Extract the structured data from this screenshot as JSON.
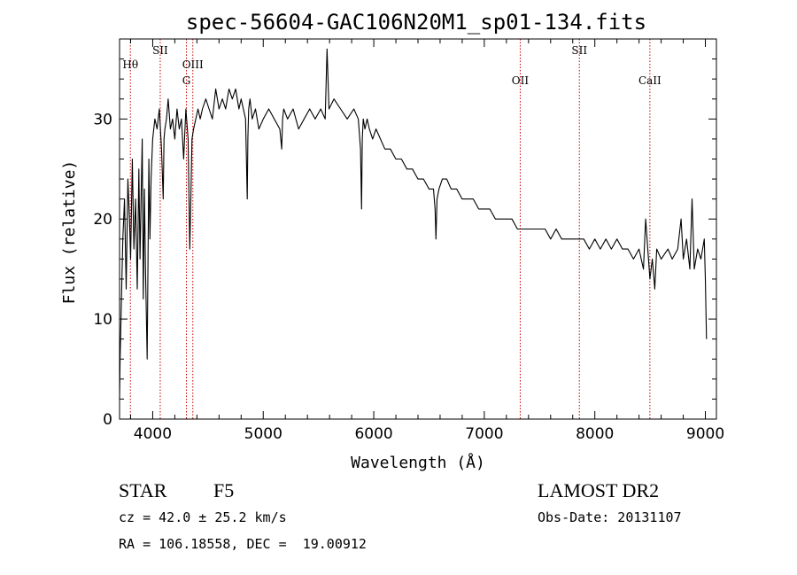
{
  "chart_data": {
    "type": "line",
    "title": "spec-56604-GAC106N20M1_sp01-134.fits",
    "xlabel": "Wavelength (Å)",
    "ylabel": "Flux (relative)",
    "xlim": [
      3700,
      9100
    ],
    "ylim": [
      0,
      38
    ],
    "x_ticks": [
      4000,
      5000,
      6000,
      7000,
      8000,
      9000
    ],
    "y_ticks": [
      0,
      10,
      20,
      30
    ],
    "grid": false,
    "spectrum": {
      "x": [
        3700,
        3705,
        3715,
        3730,
        3745,
        3760,
        3775,
        3790,
        3800,
        3815,
        3830,
        3845,
        3860,
        3875,
        3885,
        3895,
        3905,
        3915,
        3925,
        3935,
        3950,
        3965,
        3975,
        3985,
        4000,
        4020,
        4040,
        4060,
        4080,
        4095,
        4102,
        4110,
        4125,
        4140,
        4160,
        4180,
        4200,
        4220,
        4240,
        4260,
        4280,
        4300,
        4320,
        4335,
        4345,
        4355,
        4370,
        4390,
        4410,
        4430,
        4450,
        4480,
        4510,
        4540,
        4570,
        4600,
        4630,
        4660,
        4690,
        4720,
        4750,
        4780,
        4800,
        4820,
        4840,
        4855,
        4861,
        4868,
        4880,
        4900,
        4930,
        4960,
        5000,
        5050,
        5100,
        5150,
        5167,
        5175,
        5185,
        5220,
        5270,
        5320,
        5370,
        5420,
        5470,
        5520,
        5560,
        5577,
        5595,
        5640,
        5700,
        5760,
        5820,
        5860,
        5880,
        5890,
        5896,
        5905,
        5920,
        5940,
        5960,
        5990,
        6020,
        6060,
        6100,
        6150,
        6200,
        6250,
        6300,
        6350,
        6400,
        6450,
        6500,
        6540,
        6555,
        6563,
        6572,
        6590,
        6620,
        6660,
        6700,
        6750,
        6800,
        6850,
        6900,
        6950,
        7000,
        7050,
        7100,
        7150,
        7200,
        7250,
        7300,
        7350,
        7400,
        7450,
        7500,
        7550,
        7600,
        7650,
        7700,
        7750,
        7800,
        7850,
        7900,
        7950,
        8000,
        8050,
        8100,
        8150,
        8200,
        8250,
        8300,
        8350,
        8400,
        8440,
        8460,
        8498,
        8520,
        8542,
        8560,
        8600,
        8662,
        8700,
        8750,
        8780,
        8800,
        8830,
        8860,
        8880,
        8900,
        8930,
        8960,
        8990,
        9000,
        9010
      ],
      "y": [
        2,
        6,
        11,
        18,
        22,
        13,
        24,
        20,
        16,
        26,
        17,
        22,
        13,
        25,
        16,
        22,
        28,
        12,
        23,
        15,
        6,
        26,
        18,
        24,
        28,
        30,
        29,
        31,
        27,
        22,
        28,
        29,
        30,
        32,
        29,
        30,
        28,
        31,
        29,
        30,
        26,
        31,
        28,
        17,
        22,
        28,
        29,
        30,
        31,
        30,
        31,
        32,
        31,
        30,
        33,
        31,
        32,
        31,
        33,
        32,
        33,
        31,
        32,
        31,
        30,
        22,
        28,
        31,
        32,
        30,
        31,
        29,
        30,
        31,
        30,
        29,
        27,
        30,
        31,
        30,
        31,
        29,
        30,
        31,
        30,
        31,
        30,
        37,
        31,
        32,
        31,
        30,
        31,
        30,
        27,
        21,
        28,
        30,
        29,
        30,
        29,
        28,
        29,
        28,
        27,
        27,
        26,
        26,
        25,
        25,
        24,
        24,
        23,
        23,
        21,
        18,
        22,
        23,
        24,
        24,
        23,
        23,
        22,
        22,
        22,
        21,
        21,
        21,
        20,
        20,
        20,
        20,
        19,
        19,
        19,
        19,
        19,
        19,
        18,
        19,
        18,
        18,
        18,
        18,
        18,
        17,
        18,
        17,
        18,
        17,
        18,
        17,
        17,
        16,
        17,
        15,
        20,
        14,
        16,
        13,
        17,
        16,
        17,
        16,
        17,
        20,
        16,
        18,
        15,
        22,
        15,
        17,
        16,
        18,
        14,
        8
      ]
    },
    "line_markers": [
      {
        "label": "Hθ",
        "x": 3798,
        "label_row": 2
      },
      {
        "label": "SII",
        "x": 4068,
        "label_row": 1
      },
      {
        "label": "OIII",
        "x": 4363,
        "label_row": 2
      },
      {
        "label": "G",
        "x": 4305,
        "label_row": 3
      },
      {
        "label": "OII",
        "x": 7325,
        "label_row": 3
      },
      {
        "label": "SII",
        "x": 7860,
        "label_row": 1
      },
      {
        "label": "CaII",
        "x": 8498,
        "label_row": 3
      }
    ],
    "colors": {
      "line": "#000000",
      "marker": "#cc0000",
      "background": "#ffffff"
    }
  },
  "info": {
    "object_class": "STAR",
    "subclass": "F5",
    "survey": "LAMOST DR2",
    "cz": "cz = 42.0 ± 25.2 km/s",
    "obs_date": "Obs-Date: 20131107",
    "coords": "RA = 106.18558, DEC =  19.00912"
  }
}
